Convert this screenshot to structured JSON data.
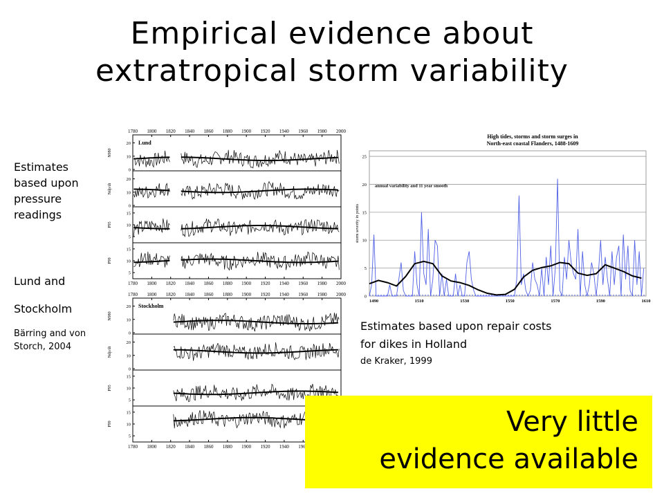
{
  "title": {
    "line1": "Empirical evidence about",
    "line2": "extratropical storm variability"
  },
  "left_annotations": {
    "pressure_note": [
      "Estimates",
      "based upon",
      "pressure",
      "readings"
    ],
    "stations_note": [
      "Lund and",
      "Stockholm"
    ],
    "citation": [
      "Bärring and von",
      "Storch, 2004"
    ]
  },
  "right_annotations": {
    "repair_note": [
      "Estimates based upon repair costs",
      "for dikes in Holland"
    ],
    "citation": "de Kraker, 1999"
  },
  "callout": {
    "line1": "Very little",
    "line2": "evidence available",
    "color": "#ffff00"
  },
  "chart_data": [
    {
      "type": "line",
      "panel": "Lund",
      "x_ticks": [
        "1780",
        "1800",
        "1820",
        "1840",
        "1860",
        "1880",
        "1900",
        "1920",
        "1940",
        "1960",
        "1980",
        "2000"
      ],
      "xlim": [
        1780,
        2000
      ],
      "series": [
        {
          "name": "N980",
          "y_ticks": [
            "0",
            "10",
            "20"
          ],
          "ylim": [
            0,
            25
          ],
          "smooth_level": 8
        },
        {
          "name": "Ndp/dt",
          "y_ticks": [
            "0",
            "10",
            "20"
          ],
          "ylim": [
            0,
            25
          ],
          "smooth_level": 11
        },
        {
          "name": "P95",
          "y_ticks": [
            "5",
            "10",
            "15"
          ],
          "ylim": [
            3,
            17
          ],
          "smooth_level": 9
        },
        {
          "name": "P99",
          "y_ticks": [
            "5",
            "10",
            "15"
          ],
          "ylim": [
            3,
            17
          ],
          "smooth_level": 10
        }
      ],
      "data_gap": [
        1820,
        1830
      ]
    },
    {
      "type": "line",
      "panel": "Stockholm",
      "x_ticks": [
        "1780",
        "1800",
        "1820",
        "1840",
        "1860",
        "1880",
        "1900",
        "1920",
        "1940",
        "1960",
        "1980",
        "2000"
      ],
      "xlim": [
        1780,
        2000
      ],
      "data_start": 1823,
      "series": [
        {
          "name": "N980",
          "y_ticks": [
            "0",
            "10",
            "20"
          ],
          "ylim": [
            0,
            25
          ],
          "smooth_level": 8
        },
        {
          "name": "Ndp/dt",
          "y_ticks": [
            "0",
            "10",
            "20"
          ],
          "ylim": [
            0,
            25
          ],
          "smooth_level": 13
        },
        {
          "name": "P95",
          "y_ticks": [
            "5",
            "10",
            "15"
          ],
          "ylim": [
            3,
            17
          ],
          "smooth_level": 8
        },
        {
          "name": "P99",
          "y_ticks": [
            "5",
            "10",
            "15"
          ],
          "ylim": [
            3,
            17
          ],
          "smooth_level": 12
        }
      ]
    },
    {
      "type": "line",
      "title": "High tides, storms and storm surges in North-east coastal Flanders, 1488-1609",
      "annotation": "annual variability and 11 year smooth",
      "ylabel": "storm severity in points",
      "x_ticks": [
        "1490",
        "1510",
        "1530",
        "1550",
        "1570",
        "1590",
        "1610"
      ],
      "xlim": [
        1488,
        1610
      ],
      "y_ticks": [
        "0",
        "5",
        "10",
        "15",
        "20",
        "25"
      ],
      "ylim": [
        0,
        26
      ],
      "series": [
        {
          "name": "annual",
          "color": "#4f5fe6",
          "x": [
            1488,
            1489,
            1490,
            1491,
            1492,
            1493,
            1494,
            1495,
            1496,
            1497,
            1498,
            1499,
            1500,
            1501,
            1502,
            1503,
            1504,
            1505,
            1506,
            1507,
            1508,
            1509,
            1510,
            1511,
            1512,
            1513,
            1514,
            1515,
            1516,
            1517,
            1518,
            1519,
            1520,
            1521,
            1522,
            1523,
            1524,
            1525,
            1526,
            1527,
            1528,
            1529,
            1530,
            1531,
            1532,
            1533,
            1534,
            1535,
            1536,
            1537,
            1538,
            1539,
            1540,
            1541,
            1542,
            1543,
            1544,
            1545,
            1546,
            1547,
            1548,
            1549,
            1550,
            1551,
            1552,
            1553,
            1554,
            1555,
            1556,
            1557,
            1558,
            1559,
            1560,
            1561,
            1562,
            1563,
            1564,
            1565,
            1566,
            1567,
            1568,
            1569,
            1570,
            1571,
            1572,
            1573,
            1574,
            1575,
            1576,
            1577,
            1578,
            1579,
            1580,
            1581,
            1582,
            1583,
            1584,
            1585,
            1586,
            1587,
            1588,
            1589,
            1590,
            1591,
            1592,
            1593,
            1594,
            1595,
            1596,
            1597,
            1598,
            1599,
            1600,
            1601,
            1602,
            1603,
            1604,
            1605,
            1606,
            1607,
            1608,
            1609
          ],
          "values": [
            0,
            2,
            11,
            0,
            0,
            0,
            0,
            0,
            0,
            2,
            0,
            0,
            0,
            3,
            6,
            1,
            0,
            0,
            0,
            0,
            8,
            2,
            0,
            15,
            4,
            2,
            12,
            0,
            3,
            10,
            9,
            0,
            4,
            0,
            3,
            0,
            0,
            0,
            4,
            0,
            2,
            0,
            0,
            6,
            8,
            3,
            1,
            0,
            0,
            0,
            0,
            0,
            0,
            0,
            0,
            0,
            0,
            0,
            0,
            0,
            0,
            0,
            0,
            0,
            0,
            3,
            18,
            2,
            4,
            1,
            0,
            1,
            6,
            3,
            2,
            0,
            5,
            0,
            7,
            2,
            9,
            0,
            5,
            21,
            1,
            0,
            7,
            3,
            10,
            6,
            4,
            3,
            12,
            0,
            8,
            2,
            0,
            2,
            6,
            4,
            0,
            4,
            10,
            2,
            7,
            3,
            0,
            8,
            2,
            7,
            9,
            0,
            11,
            3,
            9,
            1,
            0,
            10,
            2,
            8,
            0,
            5
          ]
        },
        {
          "name": "11 year smooth",
          "color": "#000000",
          "x": [
            1488,
            1492,
            1496,
            1500,
            1504,
            1508,
            1512,
            1516,
            1520,
            1524,
            1528,
            1532,
            1536,
            1540,
            1544,
            1548,
            1552,
            1556,
            1560,
            1564,
            1568,
            1572,
            1576,
            1580,
            1584,
            1588,
            1592,
            1596,
            1600,
            1604,
            1608
          ],
          "values": [
            2.2,
            2.8,
            2.4,
            1.8,
            3.5,
            5.8,
            6.2,
            5.8,
            3.6,
            2.7,
            2.4,
            1.9,
            1.1,
            0.5,
            0.2,
            0.3,
            1.2,
            3.4,
            4.6,
            5.1,
            5.4,
            6.0,
            5.8,
            4.1,
            3.7,
            4.0,
            5.6,
            5.0,
            4.4,
            3.6,
            3.2
          ]
        }
      ]
    }
  ]
}
